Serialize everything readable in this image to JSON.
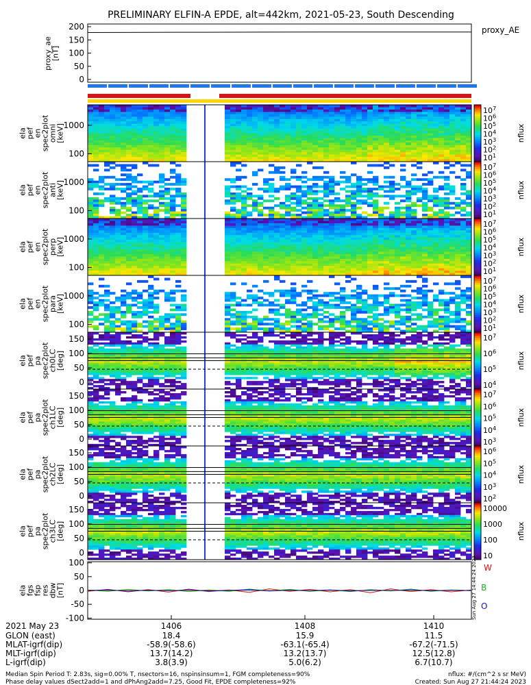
{
  "title": "PRELIMINARY ELFIN-A EPDE, alt=442km, 2021-05-23, South Descending",
  "colors": {
    "red": "#e01010",
    "blue": "#1f78e6",
    "yellow": "#ffd700",
    "white": "#ffffff",
    "black": "#000000"
  },
  "chart_data": [
    {
      "type": "line",
      "name": "proxy_AE",
      "ylabel": [
        "proxy_ae",
        "[nT]"
      ],
      "ylim": [
        0,
        200
      ],
      "yticks": [
        "200",
        "150",
        "100",
        "50",
        "0"
      ],
      "side_label": "proxy_AE",
      "series": [
        {
          "name": "proxy_AE",
          "x": [
            0,
            0.3,
            0.6,
            1.0
          ],
          "values": [
            178,
            179,
            180,
            180
          ]
        }
      ]
    },
    {
      "type": "heatmap",
      "ylabel": [
        "ela",
        "pef",
        "en",
        "spec2plot",
        "omni",
        "[keV]"
      ],
      "yscale": "log",
      "yticks": [
        "1000",
        "100"
      ],
      "colorbar": {
        "label": "nflux",
        "ticks": [
          "10^7",
          "10^6",
          "10^5",
          "10^4",
          "10^3",
          "10^2",
          "10^1"
        ]
      }
    },
    {
      "type": "heatmap",
      "ylabel": [
        "ela",
        "pef",
        "en",
        "spec2plot",
        "anti",
        "[keV]"
      ],
      "yscale": "log",
      "yticks": [
        "1000",
        "100"
      ],
      "colorbar": {
        "label": "nflux",
        "ticks": [
          "10^7",
          "10^6",
          "10^5",
          "10^4",
          "10^3",
          "10^2",
          "10^1"
        ]
      }
    },
    {
      "type": "heatmap",
      "ylabel": [
        "ela",
        "pef",
        "en",
        "spec2plot",
        "perp",
        "[keV]"
      ],
      "yscale": "log",
      "yticks": [
        "1000",
        "100"
      ],
      "colorbar": {
        "label": "nflux",
        "ticks": [
          "10^7",
          "10^6",
          "10^5",
          "10^4",
          "10^3",
          "10^2",
          "10^1"
        ]
      }
    },
    {
      "type": "heatmap",
      "ylabel": [
        "ela",
        "pef",
        "en",
        "spec2plot",
        "para",
        "[keV]"
      ],
      "yscale": "log",
      "yticks": [
        "1000",
        "100"
      ],
      "colorbar": {
        "label": "nflux",
        "ticks": [
          "10^7",
          "10^6",
          "10^5",
          "10^4",
          "10^3",
          "10^2",
          "10^1"
        ]
      }
    },
    {
      "type": "heatmap",
      "ylabel": [
        "ela",
        "pef",
        "pa",
        "spec2plot",
        "ch0LC",
        "[deg]"
      ],
      "yticks": [
        "150",
        "100",
        "50",
        "0"
      ],
      "colorbar": {
        "label": "nflux",
        "ticks": [
          "10^7",
          "10^6",
          "10^5",
          "10^4"
        ]
      }
    },
    {
      "type": "heatmap",
      "ylabel": [
        "ela",
        "pef",
        "pa",
        "spec2plot",
        "ch1LC",
        "[deg]"
      ],
      "yticks": [
        "150",
        "100",
        "50",
        "0"
      ],
      "colorbar": {
        "label": "nflux",
        "ticks": [
          "10^7",
          "10^6",
          "10^5",
          "10^4",
          "10^3"
        ]
      }
    },
    {
      "type": "heatmap",
      "ylabel": [
        "ela",
        "pef",
        "pa",
        "spec2plot",
        "ch2LC",
        "[deg]"
      ],
      "yticks": [
        "150",
        "100",
        "50",
        "0"
      ],
      "colorbar": {
        "label": "nflux",
        "ticks": [
          "10^6",
          "10^5",
          "10^4",
          "10^3",
          "10^2"
        ]
      }
    },
    {
      "type": "heatmap",
      "ylabel": [
        "ela",
        "pef",
        "pa",
        "spec2plot",
        "ch3LC",
        "[deg]"
      ],
      "yticks": [
        "150",
        "100",
        "50",
        "0"
      ],
      "colorbar": {
        "label": "nflux",
        "ticks": [
          "10000",
          "1000",
          "100",
          "10"
        ]
      }
    },
    {
      "type": "line",
      "ylabel": [
        "ela",
        "fgs",
        "fsp",
        "res",
        "dbw",
        "[nT]"
      ],
      "ylim": [
        -100,
        100
      ],
      "yticks": [
        "100",
        "50",
        "0",
        "-50",
        "-100"
      ],
      "legend": [
        "W",
        "B",
        "O"
      ],
      "series": [
        {
          "name": "W",
          "values": [
            -3,
            4,
            -5,
            3,
            -6,
            5,
            -4,
            2,
            -7,
            6,
            -3,
            4,
            -5,
            3,
            -8,
            6,
            -4,
            3,
            -5,
            2
          ]
        },
        {
          "name": "B",
          "values": [
            2,
            -3,
            4,
            -2,
            3,
            -4,
            2,
            -3,
            5,
            -2,
            4,
            -3,
            2,
            -4,
            3,
            -2,
            5,
            -3,
            2,
            -1
          ]
        },
        {
          "name": "O",
          "values": [
            0,
            2,
            -2,
            1,
            -1,
            2,
            -2,
            0,
            3,
            -2,
            1,
            -1,
            2,
            -2,
            1,
            0,
            2,
            -1,
            1,
            0
          ]
        }
      ]
    }
  ],
  "colorbar_labels": {
    "nflux": "nflux"
  },
  "ticks": {
    "rows": [
      "2021 May 23",
      "GLON (east)",
      "MLAT-igrf(dip)",
      "MLT-igrf(dip)",
      "L-igrf(dip)"
    ],
    "columns": [
      [
        "1406",
        "18.4",
        "-58.9(-58.6)",
        "13.7(14.2)",
        "3.8(3.9)"
      ],
      [
        "1408",
        "15.9",
        "-63.1(-65.4)",
        "13.2(13.7)",
        "5.0(6.2)"
      ],
      [
        "1410",
        "11.5",
        "-67.2(-71.5)",
        "12.5(12.8)",
        "6.7(10.7)"
      ]
    ]
  },
  "footer": {
    "line1": "Median Spin Period T: 2.83s, sig=0.00% T, nsectors=16, nspinsinsum=1, FGM completeness=90%",
    "line2": "Phase delay values dSect2add=1 and dPhAng2add=7.25, Good Fit, EPDE completeness=92%",
    "right1": "nflux: #/(cm^2 s sr MeV)",
    "right2": "Created: Sun Aug 27 21:44:24 2023",
    "stamp": "Sun Aug 27 14:44:24 2023"
  }
}
